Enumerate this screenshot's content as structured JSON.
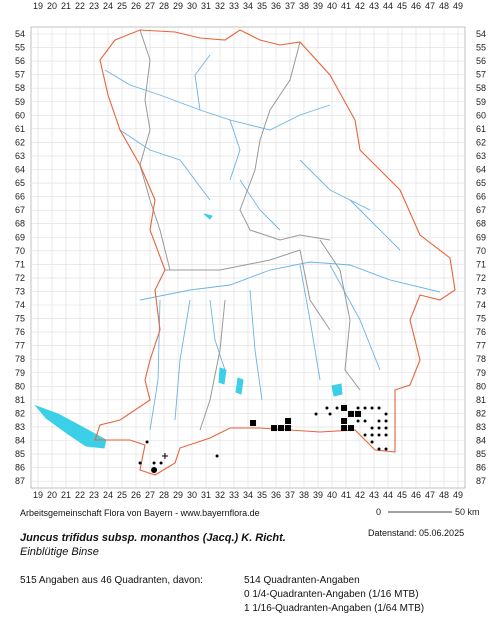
{
  "map": {
    "xticks": [
      19,
      20,
      21,
      22,
      23,
      24,
      25,
      26,
      27,
      28,
      29,
      30,
      31,
      32,
      33,
      34,
      35,
      36,
      37,
      38,
      39,
      40,
      41,
      42,
      43,
      44,
      45,
      46,
      47,
      48,
      49
    ],
    "yticks": [
      54,
      55,
      56,
      57,
      58,
      59,
      60,
      61,
      62,
      63,
      64,
      65,
      66,
      67,
      68,
      69,
      70,
      71,
      72,
      73,
      74,
      75,
      76,
      77,
      78,
      79,
      80,
      81,
      82,
      83,
      84,
      85,
      86,
      87
    ],
    "points": [
      {
        "x": 34.36,
        "y": 82.71,
        "kind": "square"
      },
      {
        "x": 35.86,
        "y": 83.08,
        "kind": "square"
      },
      {
        "x": 36.36,
        "y": 83.08,
        "kind": "square"
      },
      {
        "x": 36.86,
        "y": 82.56,
        "kind": "square"
      },
      {
        "x": 36.86,
        "y": 83.08,
        "kind": "square"
      },
      {
        "x": 40.86,
        "y": 81.6,
        "kind": "square"
      },
      {
        "x": 40.86,
        "y": 82.56,
        "kind": "square"
      },
      {
        "x": 40.86,
        "y": 83.08,
        "kind": "square"
      },
      {
        "x": 41.36,
        "y": 82.04,
        "kind": "square"
      },
      {
        "x": 41.86,
        "y": 82.04,
        "kind": "square"
      },
      {
        "x": 41.36,
        "y": 83.08,
        "kind": "square"
      },
      {
        "x": 38.86,
        "y": 82.04,
        "kind": "dot"
      },
      {
        "x": 39.64,
        "y": 81.6,
        "kind": "dot"
      },
      {
        "x": 39.86,
        "y": 82.04,
        "kind": "dot"
      },
      {
        "x": 40.36,
        "y": 81.6,
        "kind": "dot"
      },
      {
        "x": 41.86,
        "y": 81.6,
        "kind": "dot"
      },
      {
        "x": 42.36,
        "y": 81.6,
        "kind": "dot"
      },
      {
        "x": 42.86,
        "y": 81.6,
        "kind": "dot"
      },
      {
        "x": 43.36,
        "y": 81.6,
        "kind": "dot"
      },
      {
        "x": 43.86,
        "y": 82.04,
        "kind": "dot"
      },
      {
        "x": 41.86,
        "y": 82.56,
        "kind": "dot"
      },
      {
        "x": 42.36,
        "y": 82.56,
        "kind": "dot"
      },
      {
        "x": 43.36,
        "y": 82.56,
        "kind": "dot"
      },
      {
        "x": 43.86,
        "y": 82.56,
        "kind": "dot"
      },
      {
        "x": 42.86,
        "y": 83.08,
        "kind": "dot"
      },
      {
        "x": 43.36,
        "y": 83.08,
        "kind": "dot"
      },
      {
        "x": 43.86,
        "y": 83.08,
        "kind": "dot"
      },
      {
        "x": 42.36,
        "y": 83.59,
        "kind": "dot"
      },
      {
        "x": 42.86,
        "y": 83.59,
        "kind": "dot"
      },
      {
        "x": 43.36,
        "y": 83.59,
        "kind": "dot"
      },
      {
        "x": 43.86,
        "y": 83.59,
        "kind": "dot"
      },
      {
        "x": 42.86,
        "y": 84.11,
        "kind": "dot"
      },
      {
        "x": 43.36,
        "y": 84.63,
        "kind": "dot"
      },
      {
        "x": 43.86,
        "y": 84.63,
        "kind": "dot"
      },
      {
        "x": 26.79,
        "y": 84.11,
        "kind": "dot"
      },
      {
        "x": 26.29,
        "y": 85.66,
        "kind": "dot"
      },
      {
        "x": 27.29,
        "y": 85.66,
        "kind": "dot"
      },
      {
        "x": 27.79,
        "y": 85.66,
        "kind": "dot"
      },
      {
        "x": 31.79,
        "y": 85.14,
        "kind": "dot"
      },
      {
        "x": 27.29,
        "y": 86.18,
        "kind": "big-dot"
      },
      {
        "x": 28.07,
        "y": 85.14,
        "kind": "plus"
      }
    ],
    "scale_start": "0",
    "scale_end": "50 km"
  },
  "footer": {
    "credit": "Arbeitsgemeinschaft Flora von Bayern - www.bayernflora.de",
    "date": "Datenstand: 05.06.2025",
    "title": "Juncus trifidus subsp. monanthos (Jacq.) K. Richt.",
    "subtitle": "Einblütige Binse",
    "summary": "515 Angaben aus 46 Quadranten, davon:",
    "counts": [
      "514 Quadranten-Angaben",
      "0 1/4-Quadranten-Angaben (1/16 MTB)",
      "1 1/16-Quadranten-Angaben (1/64 MTB)"
    ]
  }
}
